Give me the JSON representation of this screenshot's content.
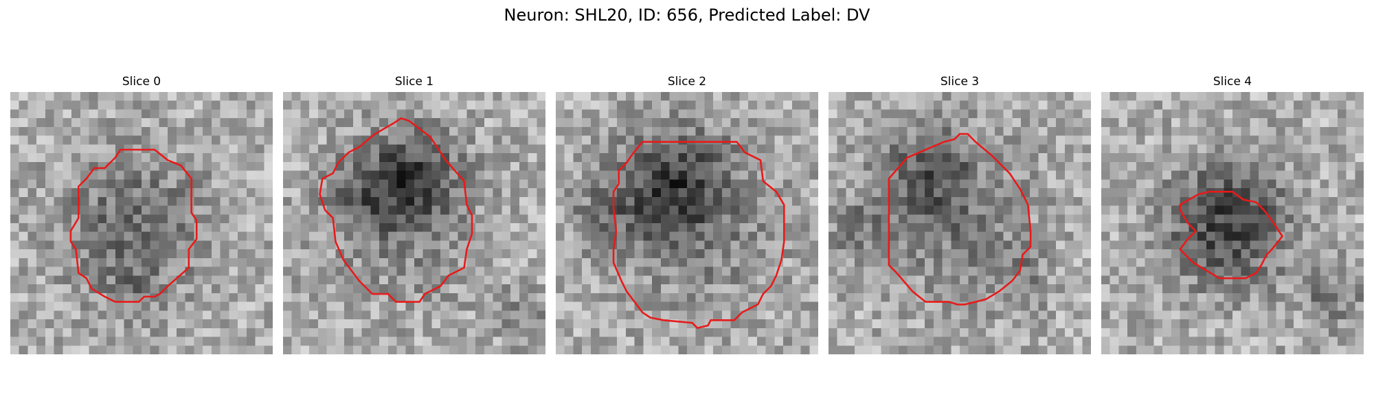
{
  "figure": {
    "title": "Neuron: SHL20, ID: 656, Predicted Label: DV",
    "contour_color": "#e81a1a",
    "slices": [
      {
        "title": "Slice 0"
      },
      {
        "title": "Slice 1"
      },
      {
        "title": "Slice 2"
      },
      {
        "title": "Slice 3"
      },
      {
        "title": "Slice 4"
      }
    ]
  }
}
